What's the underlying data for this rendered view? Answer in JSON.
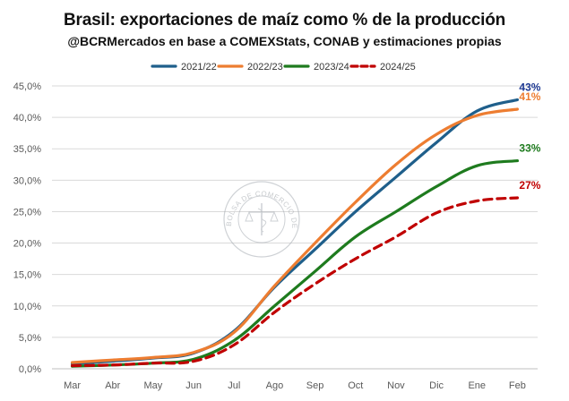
{
  "chart_data": {
    "type": "line",
    "title": "Brasil: exportaciones de maíz como % de la producción",
    "subtitle": "@BCRMercados en base a COMEXStats, CONAB y estimaciones propias",
    "categories": [
      "Mar",
      "Abr",
      "May",
      "Jun",
      "Jul",
      "Ago",
      "Sep",
      "Oct",
      "Nov",
      "Dic",
      "Ene",
      "Feb"
    ],
    "ylim": [
      0,
      45
    ],
    "yticks": [
      "0,0%",
      "5,0%",
      "10,0%",
      "15,0%",
      "20,0%",
      "25,0%",
      "30,0%",
      "35,0%",
      "40,0%",
      "45,0%"
    ],
    "grid": true,
    "legend_position": "top",
    "watermark": "BOLSA DE COMERCIO DE ROSARIO",
    "series": [
      {
        "name": "2021/22",
        "color": "#1f5f8b",
        "dash": false,
        "values": [
          0.8,
          1.2,
          1.7,
          2.5,
          6.0,
          13.0,
          19.0,
          25.0,
          30.5,
          36.0,
          41.0,
          42.8
        ],
        "end_label": "43%",
        "end_label_color": "#1f3a93"
      },
      {
        "name": "2022/23",
        "color": "#ed7d31",
        "dash": false,
        "values": [
          1.0,
          1.4,
          1.8,
          2.6,
          5.8,
          13.2,
          20.0,
          26.5,
          32.5,
          37.3,
          40.3,
          41.3
        ],
        "end_label": "41%",
        "end_label_color": "#ed7d31"
      },
      {
        "name": "2023/24",
        "color": "#1e7b1e",
        "dash": false,
        "values": [
          0.4,
          0.6,
          0.9,
          1.5,
          4.5,
          10.0,
          15.5,
          21.0,
          25.0,
          29.0,
          32.3,
          33.1
        ],
        "end_label": "33%",
        "end_label_color": "#1e7b1e"
      },
      {
        "name": "2024/25",
        "color": "#c00000",
        "dash": true,
        "values": [
          0.5,
          0.6,
          0.9,
          1.2,
          3.8,
          9.0,
          13.5,
          17.5,
          21.0,
          24.8,
          26.7,
          27.2
        ],
        "end_label": "27%",
        "end_label_color": "#c00000"
      }
    ]
  }
}
